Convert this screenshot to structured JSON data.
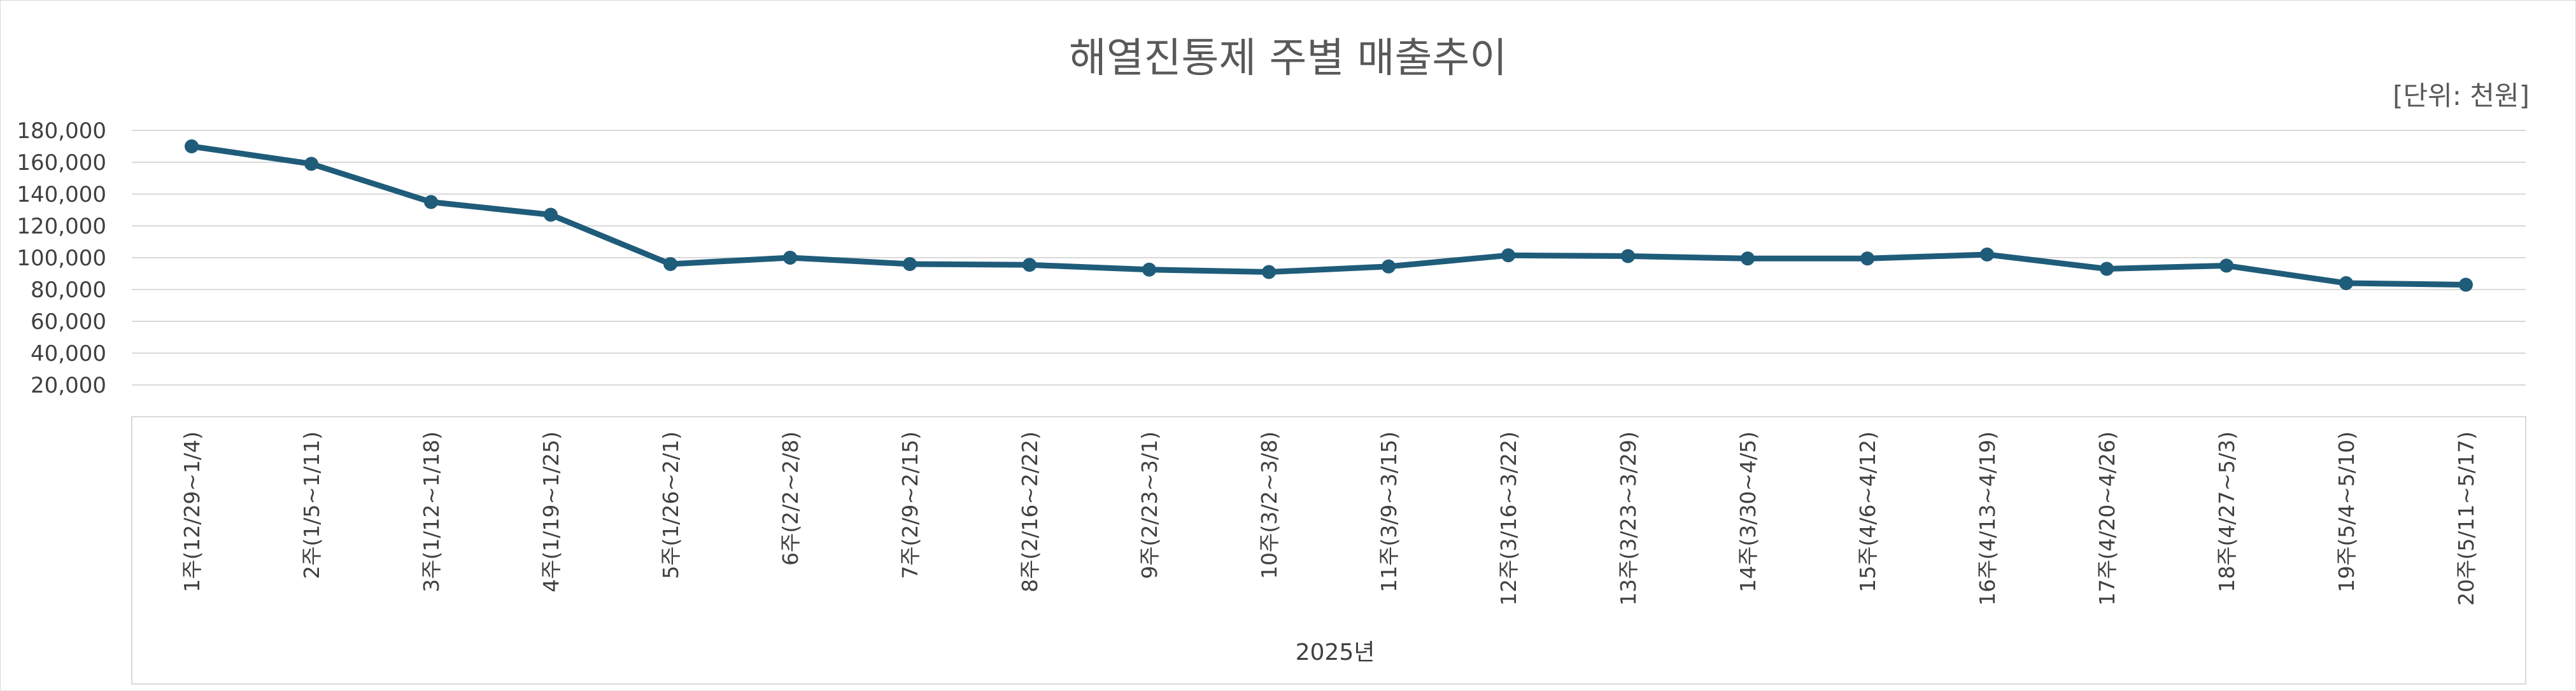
{
  "chart_data": {
    "type": "line",
    "title": "해열진통제 주별 매출추이",
    "unit_label": "[단위: 천원]",
    "xlabel": "2025년",
    "ylabel": "",
    "ylim": [
      0,
      180000
    ],
    "yticks": [
      "20,000",
      "40,000",
      "60,000",
      "80,000",
      "100,000",
      "120,000",
      "140,000",
      "160,000",
      "180,000"
    ],
    "ytick_values": [
      20000,
      40000,
      60000,
      80000,
      100000,
      120000,
      140000,
      160000,
      180000
    ],
    "grid": true,
    "legend": "none",
    "categories": [
      "1주(12/29~1/4)",
      "2주(1/5~1/11)",
      "3주(1/12~1/18)",
      "4주(1/19~1/25)",
      "5주(1/26~2/1)",
      "6주(2/2~2/8)",
      "7주(2/9~2/15)",
      "8주(2/16~2/22)",
      "9주(2/23~3/1)",
      "10주(3/2~3/8)",
      "11주(3/9~3/15)",
      "12주(3/16~3/22)",
      "13주(3/23~3/29)",
      "14주(3/30~4/5)",
      "15주(4/6~4/12)",
      "16주(4/13~4/19)",
      "17주(4/20~4/26)",
      "18주(4/27~5/3)",
      "19주(5/4~5/10)",
      "20주(5/11~5/17)"
    ],
    "series": [
      {
        "values": [
          170000,
          159000,
          135000,
          127000,
          96000,
          100000,
          96000,
          95500,
          92500,
          91000,
          94500,
          101500,
          101000,
          99500,
          99500,
          102000,
          93000,
          95000,
          84000,
          83000
        ],
        "color": "#1f5c7a"
      }
    ]
  }
}
